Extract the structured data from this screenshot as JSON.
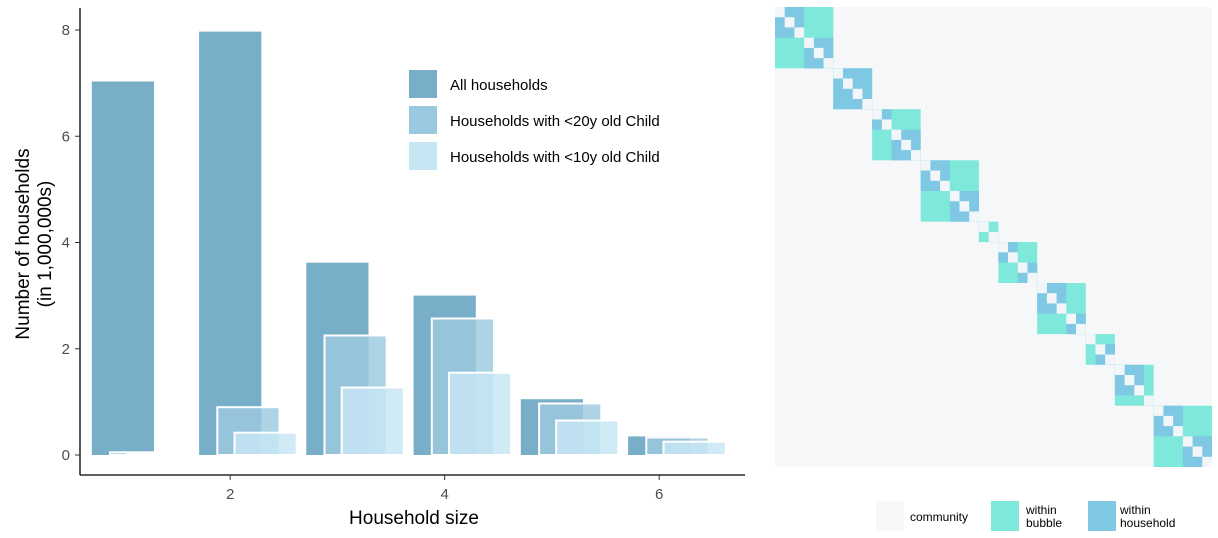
{
  "chart_data": [
    {
      "type": "bar",
      "xlabel": "Household size",
      "ylabel_line1": "Number of households",
      "ylabel_line2": "(in 1,000,000s)",
      "xlim": [
        0.6,
        6.8
      ],
      "ylim": [
        0,
        8.4
      ],
      "x_ticks": [
        2,
        4,
        6
      ],
      "y_ticks": [
        0,
        2,
        4,
        6,
        8
      ],
      "categories": [
        1,
        2,
        3,
        4,
        5,
        6
      ],
      "series": [
        {
          "name": "All households",
          "values": [
            7.03,
            7.97,
            3.62,
            3.0,
            1.05,
            0.35
          ],
          "color": "#79aec8"
        },
        {
          "name": "Households with <20y old Child",
          "values": [
            0.05,
            0.9,
            2.25,
            2.57,
            0.97,
            0.33
          ],
          "color": "#9bc9df"
        },
        {
          "name": "Households with <10y old Child",
          "values": [
            0.03,
            0.42,
            1.27,
            1.55,
            0.65,
            0.25
          ],
          "color": "#c7e6f4"
        }
      ],
      "legend_position": "top-right",
      "grid": false
    },
    {
      "type": "heatmap",
      "description_values": "contact matrix with block-diagonal structure",
      "blocks": [
        {
          "bubble": 6,
          "households": [
            3,
            3
          ]
        },
        {
          "bubble": 4,
          "households": [
            4
          ]
        },
        {
          "bubble": 5,
          "households": [
            2,
            3
          ]
        },
        {
          "bubble": 6,
          "households": [
            3,
            3
          ]
        },
        {
          "bubble": 2,
          "households": [
            1,
            1
          ]
        },
        {
          "bubble": 4,
          "households": [
            2,
            2
          ]
        },
        {
          "bubble": 5,
          "households": [
            3,
            2
          ]
        },
        {
          "bubble": 3,
          "households": [
            1,
            2
          ]
        },
        {
          "bubble": 4,
          "households": [
            3,
            1
          ]
        },
        {
          "bubble": 6,
          "households": [
            3,
            3
          ]
        }
      ],
      "legend": [
        {
          "label": "community",
          "color": "#f5f7f9"
        },
        {
          "label": "within\nbubble",
          "color": "#7ee8da"
        },
        {
          "label": "within\nhousehold",
          "color": "#7ec8e3"
        }
      ],
      "diagonal_color": "#f2f6f9"
    }
  ]
}
